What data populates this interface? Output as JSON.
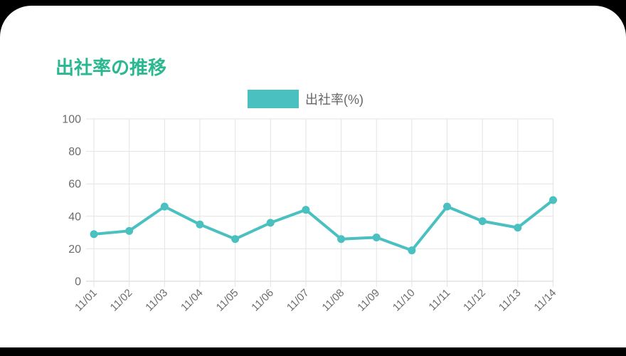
{
  "page": {
    "title": "出社率の推移"
  },
  "theme": {
    "background": "#000000",
    "card_background": "#ffffff",
    "title_color": "#2bb78f",
    "line_color": "#4bc0c0",
    "grid_color": "#e3e3e3",
    "grid_zero_color": "#d2d2d2",
    "axis_text_color": "#6b6b6b",
    "legend_text_color": "#666666"
  },
  "chart_data": {
    "type": "line",
    "title": "出社率の推移",
    "categories": [
      "11/01",
      "11/02",
      "11/03",
      "11/04",
      "11/05",
      "11/06",
      "11/07",
      "11/08",
      "11/09",
      "11/10",
      "11/11",
      "11/12",
      "11/13",
      "11/14"
    ],
    "series": [
      {
        "name": "出社率(%)",
        "color": "#4bc0c0",
        "values": [
          29,
          31,
          46,
          35,
          26,
          36,
          44,
          26,
          27,
          19,
          46,
          37,
          33,
          50
        ]
      }
    ],
    "xlabel": "",
    "ylabel": "",
    "ylim": [
      0,
      100
    ],
    "yticks": [
      0,
      20,
      40,
      60,
      80,
      100
    ],
    "grid": true,
    "legend_position": "top",
    "x_tick_rotation": -45
  }
}
